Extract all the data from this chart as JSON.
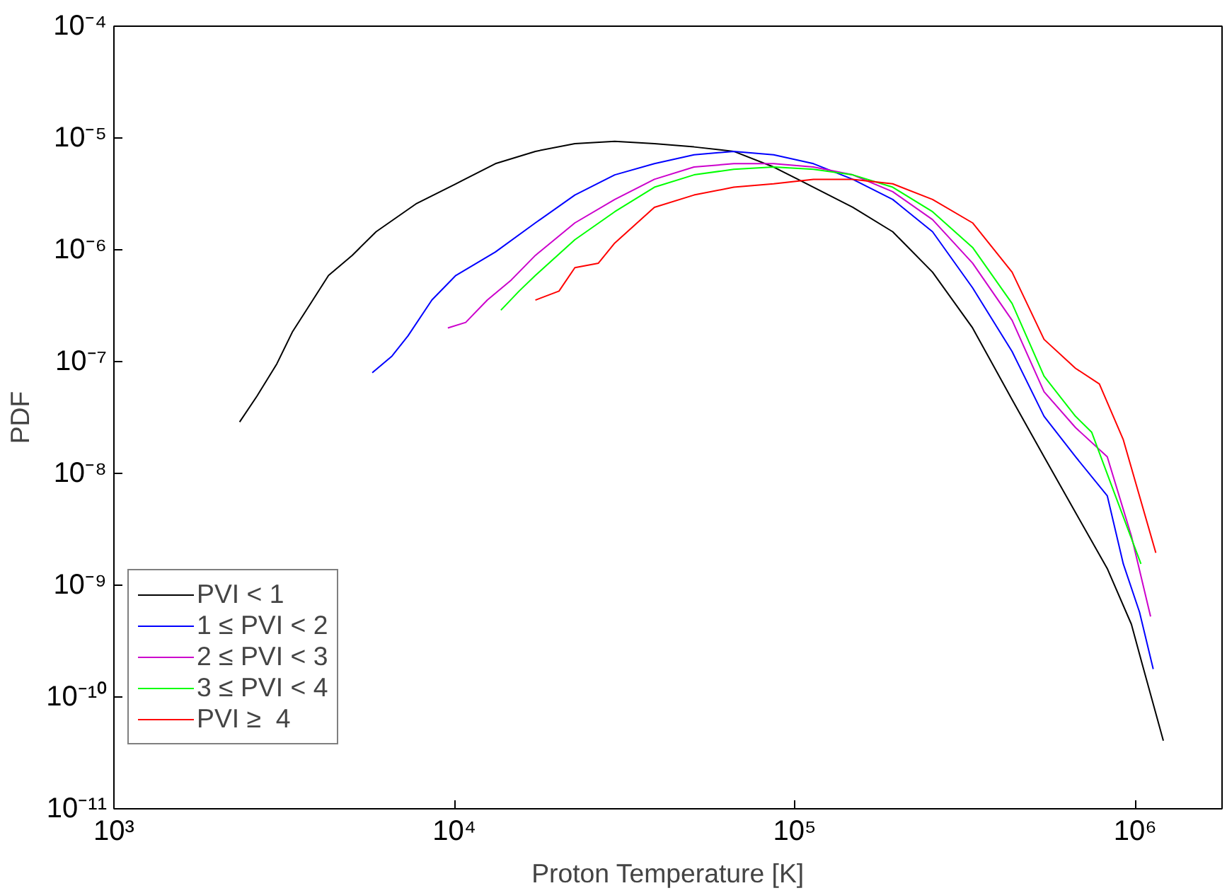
{
  "chart_data": {
    "type": "line",
    "xlabel": "Proton Temperature [K]",
    "ylabel": "PDF",
    "log": "xy",
    "grid": false,
    "legend": "bottom left",
    "marker": "none",
    "line_style": "solid",
    "xlim": [
      1000,
      1800000
    ],
    "ylim": [
      1e-11,
      0.0001
    ],
    "xticks": [
      {
        "value": 1000,
        "label": "10³"
      },
      {
        "value": 10000,
        "label": "10⁴"
      },
      {
        "value": 100000,
        "label": "10⁵"
      },
      {
        "value": 1000000,
        "label": "10⁶"
      }
    ],
    "yticks": [
      {
        "value": 1e-11,
        "label": "10⁻¹¹"
      },
      {
        "value": 1e-10,
        "label": "10⁻¹⁰"
      },
      {
        "value": 1e-09,
        "label": "10⁻⁹"
      },
      {
        "value": 1e-08,
        "label": "10⁻⁸"
      },
      {
        "value": 1e-07,
        "label": "10⁻⁷"
      },
      {
        "value": 1e-06,
        "label": "10⁻⁶"
      },
      {
        "value": 1e-05,
        "label": "10⁻⁵"
      },
      {
        "value": 0.0001,
        "label": "10⁻⁴"
      }
    ],
    "series": [
      {
        "name": "PVI < 1",
        "color": "#000000",
        "x": [
          2340,
          2630,
          3010,
          3350,
          3840,
          4270,
          5010,
          5890,
          7710,
          10100,
          13200,
          17300,
          22600,
          29600,
          38700,
          50600,
          66200,
          86700,
          113500,
          148000,
          194000,
          254000,
          333000,
          435000,
          540000,
          668000,
          828000,
          975000,
          1050000,
          1210000
        ],
        "values": [
          2.88e-08,
          4.9e-08,
          9.55e-08,
          1.86e-07,
          3.55e-07,
          5.89e-07,
          8.91e-07,
          1.45e-06,
          2.57e-06,
          3.89e-06,
          5.89e-06,
          7.59e-06,
          8.91e-06,
          9.33e-06,
          8.91e-06,
          8.32e-06,
          7.59e-06,
          5.5e-06,
          3.63e-06,
          2.4e-06,
          1.45e-06,
          6.31e-07,
          2e-07,
          4.57e-08,
          1.41e-08,
          4.47e-09,
          1.41e-09,
          4.47e-10,
          1.95e-10,
          4.07e-11
        ]
      },
      {
        "name": "1 ≤ PVI < 2",
        "color": "#0000ff",
        "x": [
          5740,
          6560,
          7310,
          8590,
          10100,
          13200,
          17300,
          22600,
          29600,
          38700,
          50600,
          66200,
          86700,
          113500,
          148000,
          194000,
          254000,
          333000,
          435000,
          540000,
          668000,
          828000,
          923000,
          1030000,
          1130000
        ],
        "values": [
          7.94e-08,
          1.12e-07,
          1.7e-07,
          3.55e-07,
          5.89e-07,
          9.55e-07,
          1.74e-06,
          3.09e-06,
          4.68e-06,
          5.89e-06,
          7.08e-06,
          7.59e-06,
          7.08e-06,
          5.89e-06,
          4.27e-06,
          2.82e-06,
          1.45e-06,
          4.57e-07,
          1.23e-07,
          3.24e-08,
          1.41e-08,
          6.31e-09,
          1.55e-09,
          5.75e-10,
          1.78e-10
        ]
      },
      {
        "name": "2 ≤ PVI < 3",
        "color": "#cc00cc",
        "x": [
          9570,
          10800,
          12500,
          14700,
          17300,
          22600,
          29600,
          38700,
          50600,
          66200,
          86700,
          113500,
          148000,
          194000,
          254000,
          333000,
          435000,
          540000,
          668000,
          828000,
          975000,
          1110000
        ],
        "values": [
          2e-07,
          2.24e-07,
          3.55e-07,
          5.37e-07,
          8.91e-07,
          1.74e-06,
          2.82e-06,
          4.27e-06,
          5.5e-06,
          5.89e-06,
          5.89e-06,
          5.5e-06,
          4.68e-06,
          3.31e-06,
          1.86e-06,
          7.59e-07,
          2.34e-07,
          5.37e-08,
          2.57e-08,
          1.41e-08,
          2.75e-09,
          5.25e-10
        ]
      },
      {
        "name": "3 ≤ PVI < 4",
        "color": "#00ff00",
        "x": [
          13700,
          15500,
          17300,
          22600,
          29600,
          38700,
          50600,
          66200,
          86700,
          113500,
          148000,
          194000,
          254000,
          333000,
          435000,
          540000,
          668000,
          745000,
          875000,
          1040000
        ],
        "values": [
          2.88e-07,
          4.27e-07,
          5.89e-07,
          1.23e-06,
          2.19e-06,
          3.63e-06,
          4.68e-06,
          5.25e-06,
          5.5e-06,
          5.25e-06,
          4.68e-06,
          3.63e-06,
          2.19e-06,
          1.05e-06,
          3.31e-07,
          7.41e-08,
          3.24e-08,
          2.34e-08,
          6.31e-09,
          1.55e-09
        ]
      },
      {
        "name": "PVI ≥  4",
        "color": "#ff0000",
        "x": [
          17300,
          20300,
          22600,
          26500,
          29600,
          38700,
          50600,
          66200,
          86700,
          113500,
          148000,
          194000,
          254000,
          333000,
          435000,
          540000,
          668000,
          785000,
          923000,
          1150000
        ],
        "values": [
          3.55e-07,
          4.27e-07,
          6.92e-07,
          7.59e-07,
          1.15e-06,
          2.4e-06,
          3.09e-06,
          3.63e-06,
          3.89e-06,
          4.27e-06,
          4.27e-06,
          3.89e-06,
          2.82e-06,
          1.74e-06,
          6.31e-07,
          1.58e-07,
          8.71e-08,
          6.31e-08,
          2e-08,
          1.95e-09
        ]
      }
    ]
  }
}
